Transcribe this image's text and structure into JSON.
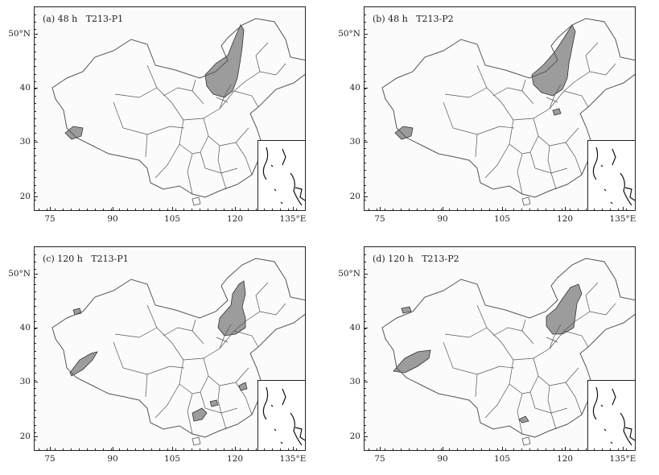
{
  "figure": {
    "panels": [
      {
        "label": "(a) 48 h   T213-P1"
      },
      {
        "label": "(b) 48 h   T213-P2"
      },
      {
        "label": "(c) 120 h   T213-P1"
      },
      {
        "label": "(d) 120 h   T213-P2"
      }
    ],
    "y_ticks": [
      "50°N",
      "40",
      "30",
      "20"
    ],
    "x_ticks": [
      "75",
      "90",
      "105",
      "120",
      "135°E"
    ],
    "colors": {
      "shading": "#9c9c9c",
      "border": "#555555",
      "frame": "#222222"
    }
  }
}
